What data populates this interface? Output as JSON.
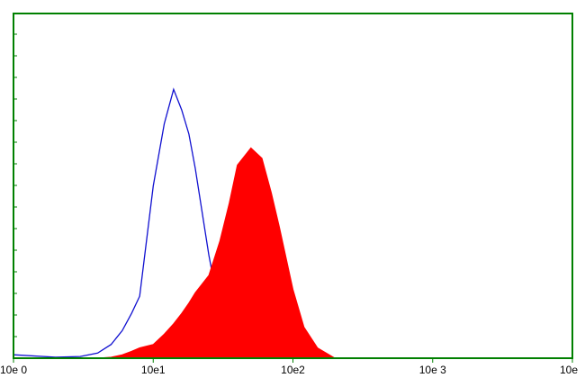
{
  "chart_data": {
    "type": "histogram-overlay",
    "x": [
      1,
      2,
      3,
      4,
      5,
      6,
      7,
      8,
      10,
      12,
      14,
      16,
      18,
      20,
      25,
      30,
      35,
      40,
      50,
      60,
      70,
      80,
      100,
      120,
      150,
      200
    ],
    "series": [
      {
        "color": "#1010d0",
        "fill": false,
        "values": [
          1,
          0.3,
          0.5,
          1.5,
          4,
          8,
          13,
          18,
          50,
          68,
          78,
          72,
          65,
          55,
          30,
          13,
          5,
          2,
          0.5,
          0,
          0,
          0,
          0,
          0,
          0,
          0
        ]
      },
      {
        "color": "#ff0000",
        "fill": true,
        "values": [
          0,
          0,
          0,
          0,
          0.3,
          1,
          2,
          3,
          4,
          7,
          10,
          13,
          16,
          19,
          24,
          34,
          45,
          56,
          61,
          58,
          48,
          38,
          20,
          9,
          3,
          0
        ]
      }
    ],
    "xscale": "log",
    "xlim": [
      1,
      10000
    ],
    "xticks": [
      {
        "value": 1,
        "label": "10e 0"
      },
      {
        "value": 10,
        "label": "10e1"
      },
      {
        "value": 100,
        "label": "10e2"
      },
      {
        "value": 1000,
        "label": "10e 3"
      },
      {
        "value": 10000,
        "label": "10e"
      }
    ],
    "ylim": [
      0,
      100
    ],
    "frame_color": "#008000"
  }
}
